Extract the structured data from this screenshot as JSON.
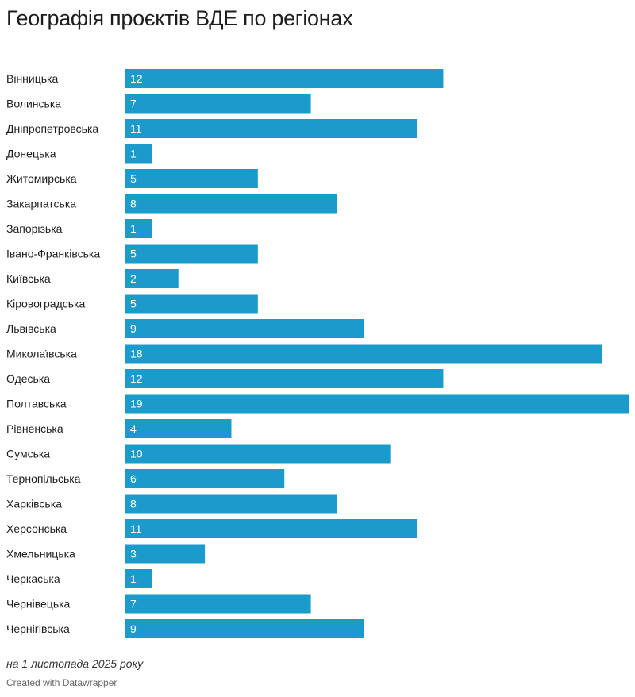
{
  "header": {
    "title": "Географія проєктів ВДЕ по регіонах"
  },
  "footer": {
    "note": "на 1 листопада 2025 року",
    "credit": "Created with Datawrapper"
  },
  "colors": {
    "bar": "#1a9bcc",
    "text": "#1d1d1d",
    "value_text": "#ffffff"
  },
  "chart_data": {
    "type": "bar",
    "orientation": "horizontal",
    "title": "Географія проєктів ВДЕ по регіонах",
    "categories": [
      "Вінницька",
      "Волинська",
      "Дніпропетровська",
      "Донецька",
      "Житомирська",
      "Закарпатська",
      "Запорізька",
      "Івано-Франківська",
      "Київська",
      "Кіровоградська",
      "Львівська",
      "Миколаївська",
      "Одеська",
      "Полтавська",
      "Рівненська",
      "Сумська",
      "Тернопільська",
      "Харківська",
      "Херсонська",
      "Хмельницька",
      "Черкаська",
      "Чернівецька",
      "Чернігівська"
    ],
    "values": [
      12,
      7,
      11,
      1,
      5,
      8,
      1,
      5,
      2,
      5,
      9,
      18,
      12,
      19,
      4,
      10,
      6,
      8,
      11,
      3,
      1,
      7,
      9
    ],
    "xlim": [
      0,
      19
    ],
    "data_labels": true,
    "grid": false,
    "legend": "none"
  }
}
